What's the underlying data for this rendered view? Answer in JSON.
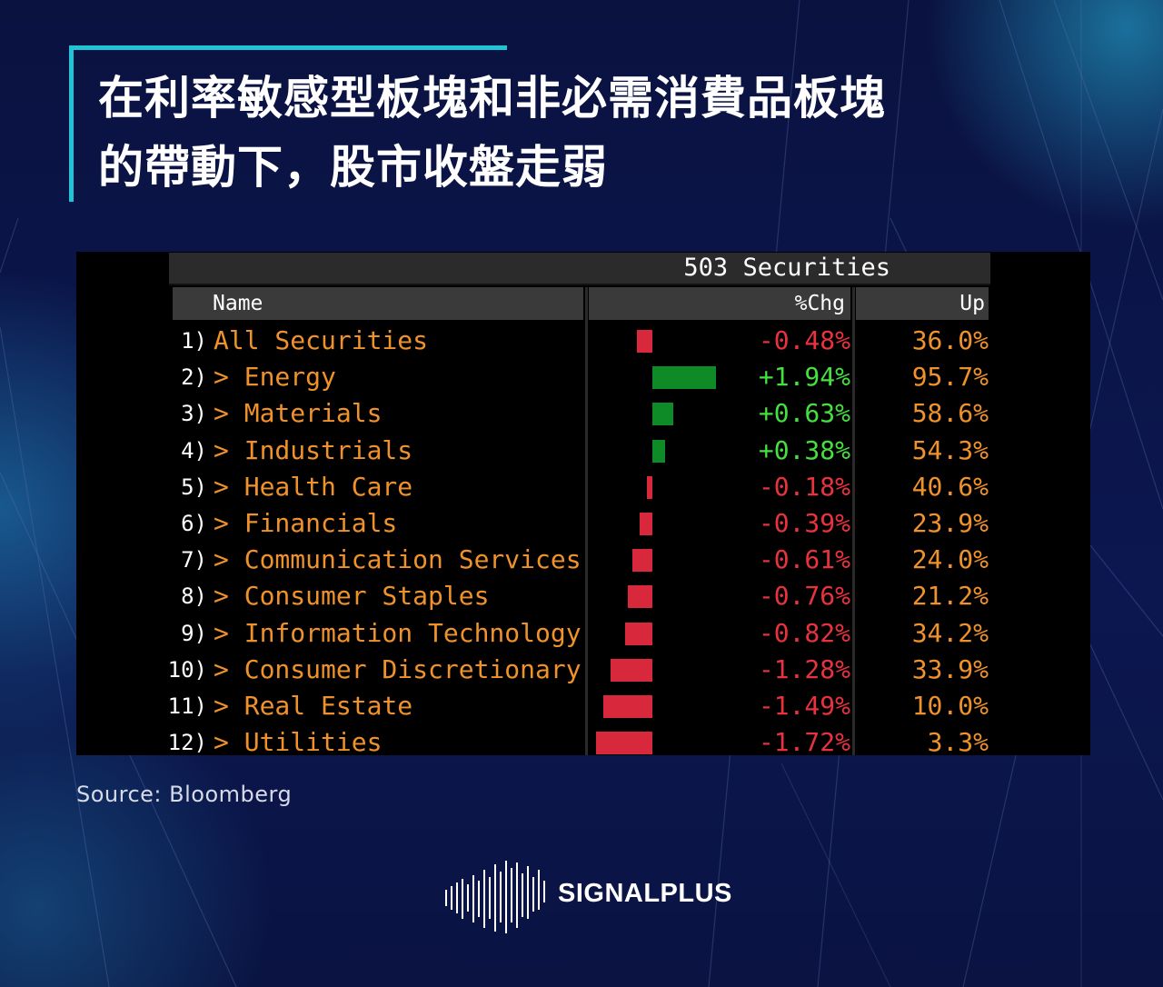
{
  "headline": {
    "line1": "在利率敏感型板塊和非必需消費品板塊",
    "line2": "的帶動下，股市收盤走弱"
  },
  "terminal": {
    "securities_count": "503 Securities",
    "columns": {
      "name": "Name",
      "chg": "%Chg",
      "up": "Up"
    },
    "rows": [
      {
        "idx": "1)",
        "name": "All Securities",
        "chg": "-0.48%",
        "up": "36.0%",
        "value": -0.48
      },
      {
        "idx": "2)",
        "name": "> Energy",
        "chg": "+1.94%",
        "up": "95.7%",
        "value": 1.94
      },
      {
        "idx": "3)",
        "name": "> Materials",
        "chg": "+0.63%",
        "up": "58.6%",
        "value": 0.63
      },
      {
        "idx": "4)",
        "name": "> Industrials",
        "chg": "+0.38%",
        "up": "54.3%",
        "value": 0.38
      },
      {
        "idx": "5)",
        "name": "> Health Care",
        "chg": "-0.18%",
        "up": "40.6%",
        "value": -0.18
      },
      {
        "idx": "6)",
        "name": "> Financials",
        "chg": "-0.39%",
        "up": "23.9%",
        "value": -0.39
      },
      {
        "idx": "7)",
        "name": "> Communication Services",
        "chg": "-0.61%",
        "up": "24.0%",
        "value": -0.61
      },
      {
        "idx": "8)",
        "name": "> Consumer Staples",
        "chg": "-0.76%",
        "up": "21.2%",
        "value": -0.76
      },
      {
        "idx": "9)",
        "name": "> Information Technology",
        "chg": "-0.82%",
        "up": "34.2%",
        "value": -0.82
      },
      {
        "idx": "10)",
        "name": "> Consumer Discretionary",
        "chg": "-1.28%",
        "up": "33.9%",
        "value": -1.28
      },
      {
        "idx": "11)",
        "name": "> Real Estate",
        "chg": "-1.49%",
        "up": "10.0%",
        "value": -1.49
      },
      {
        "idx": "12)",
        "name": "> Utilities",
        "chg": "-1.72%",
        "up": "3.3%",
        "value": -1.72
      }
    ]
  },
  "colors": {
    "accent": "#21c4d6",
    "positive": "#45e040",
    "negative": "#e8333f",
    "bar_positive": "#0e8a26",
    "bar_negative": "#d8283c",
    "label_orange": "#f0922b"
  },
  "source": "Source:  Bloomberg",
  "brand": {
    "name": "SIGNALPLUS",
    "icon": "waveform-logo-icon"
  }
}
